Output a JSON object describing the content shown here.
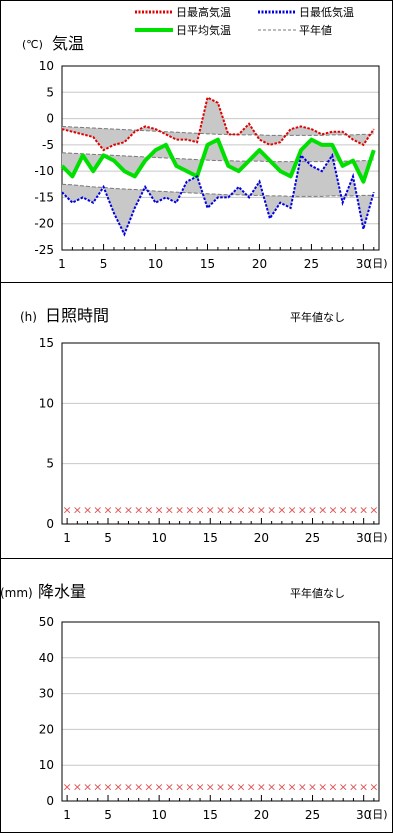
{
  "chart_data": [
    {
      "type": "line",
      "title": "気温",
      "unit_label": "(℃)",
      "x": [
        1,
        2,
        3,
        4,
        5,
        6,
        7,
        8,
        9,
        10,
        11,
        12,
        13,
        14,
        15,
        16,
        17,
        18,
        19,
        20,
        21,
        22,
        23,
        24,
        25,
        26,
        27,
        28,
        29,
        30,
        31
      ],
      "xticks": [
        1,
        5,
        10,
        15,
        20,
        25,
        30
      ],
      "xlabel": "(日)",
      "ylim": [
        -25,
        10
      ],
      "yticks": [
        10,
        5,
        0,
        -5,
        -10,
        -15,
        -20,
        -25
      ],
      "legend": [
        {
          "label": "日最高気温",
          "style": "dotted",
          "color": "#e00000"
        },
        {
          "label": "日最低気温",
          "style": "dotted",
          "color": "#0000e0"
        },
        {
          "label": "日平均気温",
          "style": "solid",
          "color": "#00e000"
        },
        {
          "label": "平年値",
          "style": "dashed",
          "color": "#777777"
        }
      ],
      "series": [
        {
          "name": "日最高気温",
          "color": "#e00000",
          "values": [
            -2,
            -2.5,
            -3,
            -3.5,
            -6,
            -5,
            -4.5,
            -2.5,
            -1.5,
            -2,
            -3,
            -4,
            -4,
            -4.5,
            4,
            3,
            -3,
            -3,
            -1,
            -4,
            -5,
            -4.5,
            -2,
            -1.5,
            -2,
            -3,
            -2.5,
            -2.5,
            -4,
            -5,
            -2
          ]
        },
        {
          "name": "日最低気温",
          "color": "#0000e0",
          "values": [
            -14,
            -16,
            -15,
            -16,
            -13,
            -18,
            -22,
            -17,
            -13,
            -16,
            -15,
            -16,
            -12,
            -11,
            -17,
            -15,
            -15,
            -13,
            -15,
            -12,
            -19,
            -16,
            -17,
            -7,
            -9,
            -10,
            -7,
            -16,
            -11,
            -21,
            -14
          ]
        },
        {
          "name": "日平均気温",
          "color": "#00e000",
          "values": [
            -9,
            -11,
            -7,
            -10,
            -7,
            -8,
            -10,
            -11,
            -8,
            -6,
            -5,
            -9,
            -10,
            -11,
            -5,
            -4,
            -9,
            -10,
            -8,
            -6,
            -8,
            -10,
            -11,
            -6,
            -4,
            -5,
            -5,
            -9,
            -8,
            -12,
            -6
          ]
        },
        {
          "name": "平年値_最高",
          "color": "#777777",
          "values": [
            -1.5,
            -1.6,
            -1.7,
            -1.8,
            -1.9,
            -2,
            -2.1,
            -2.2,
            -2.3,
            -2.4,
            -2.5,
            -2.6,
            -2.7,
            -2.8,
            -2.9,
            -3,
            -3,
            -3.1,
            -3.1,
            -3.1,
            -3.2,
            -3.2,
            -3.2,
            -3.2,
            -3.2,
            -3.2,
            -3.1,
            -3.1,
            -3.1,
            -3,
            -3
          ]
        },
        {
          "name": "平年値_平均",
          "color": "#777777",
          "values": [
            -6.5,
            -6.6,
            -6.7,
            -6.8,
            -6.9,
            -7,
            -7.1,
            -7.2,
            -7.3,
            -7.4,
            -7.5,
            -7.6,
            -7.7,
            -7.8,
            -7.9,
            -8,
            -8,
            -8.1,
            -8.1,
            -8.1,
            -8.2,
            -8.2,
            -8.2,
            -8.2,
            -8.2,
            -8.2,
            -8.1,
            -8.1,
            -8.1,
            -8,
            -8
          ]
        },
        {
          "name": "平年値_最低",
          "color": "#777777",
          "values": [
            -12.5,
            -12.6,
            -12.8,
            -13,
            -13.1,
            -13.3,
            -13.4,
            -13.5,
            -13.6,
            -13.8,
            -13.9,
            -14,
            -14.1,
            -14.2,
            -14.3,
            -14.4,
            -14.5,
            -14.5,
            -14.6,
            -14.6,
            -14.7,
            -14.7,
            -14.8,
            -14.8,
            -14.8,
            -14.8,
            -14.7,
            -14.7,
            -14.7,
            -14.6,
            -14.6
          ]
        }
      ]
    },
    {
      "type": "scatter",
      "title": "日照時間",
      "unit_label": "(h)",
      "note": "平年値なし",
      "x": [
        1,
        2,
        3,
        4,
        5,
        6,
        7,
        8,
        9,
        10,
        11,
        12,
        13,
        14,
        15,
        16,
        17,
        18,
        19,
        20,
        21,
        22,
        23,
        24,
        25,
        26,
        27,
        28,
        29,
        30,
        31
      ],
      "xticks": [
        1,
        5,
        10,
        15,
        20,
        25,
        30
      ],
      "xlabel": "(日)",
      "ylim": [
        0,
        15
      ],
      "yticks": [
        15,
        10,
        5,
        0
      ],
      "marker": "×",
      "marker_color": "#e05050",
      "values": [
        1.2,
        1.2,
        1.2,
        1.2,
        1.2,
        1.2,
        1.2,
        1.2,
        1.2,
        1.2,
        1.2,
        1.2,
        1.2,
        1.2,
        1.2,
        1.2,
        1.2,
        1.2,
        1.2,
        1.2,
        1.2,
        1.2,
        1.2,
        1.2,
        1.2,
        1.2,
        1.2,
        1.2,
        1.2,
        1.2,
        1.2
      ]
    },
    {
      "type": "scatter",
      "title": "降水量",
      "unit_label": "(mm)",
      "note": "平年値なし",
      "x": [
        1,
        2,
        3,
        4,
        5,
        6,
        7,
        8,
        9,
        10,
        11,
        12,
        13,
        14,
        15,
        16,
        17,
        18,
        19,
        20,
        21,
        22,
        23,
        24,
        25,
        26,
        27,
        28,
        29,
        30,
        31
      ],
      "xticks": [
        1,
        5,
        10,
        15,
        20,
        25,
        30
      ],
      "xlabel": "(日)",
      "ylim": [
        0,
        50
      ],
      "yticks": [
        50,
        40,
        30,
        20,
        10,
        0
      ],
      "marker": "×",
      "marker_color": "#e05050",
      "values": [
        4,
        4,
        4,
        4,
        4,
        4,
        4,
        4,
        4,
        4,
        4,
        4,
        4,
        4,
        4,
        4,
        4,
        4,
        4,
        4,
        4,
        4,
        4,
        4,
        4,
        4,
        4,
        4,
        4,
        4,
        4
      ]
    }
  ]
}
